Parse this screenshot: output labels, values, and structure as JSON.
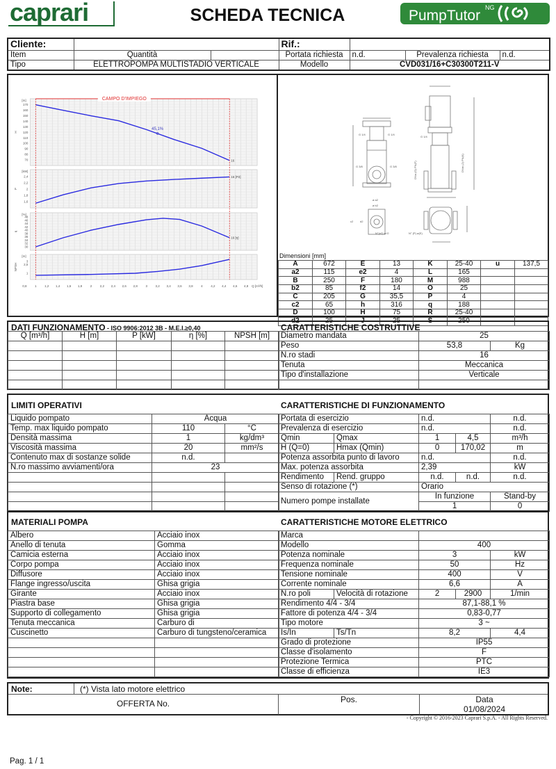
{
  "header": {
    "brand": "caprari",
    "title": "SCHEDA TECNICA",
    "product_logo": "PumpTutor",
    "product_logo_sup": "NG",
    "colors": {
      "brand_green": "#1e6b34",
      "logo_green": "#2f8a3a"
    }
  },
  "top": [
    [
      "Cliente:",
      "",
      "Rif.:",
      ""
    ],
    [
      "Item",
      "Quantità",
      "",
      "Portata richiesta",
      "n.d.",
      "Prevalenza richiesta",
      "n.d."
    ],
    [
      "Tipo",
      "ELETTROPOMPA MULTISTADIO VERTICALE",
      "Modello",
      "CVD031/16+C30300T211-V"
    ]
  ],
  "performance_chart": {
    "range_label": "CAMPO D'IMPIEGO",
    "x_unit": "Q [m³/h]",
    "x_ticks": [
      "0,8",
      "1",
      "1,2",
      "1,4",
      "1,6",
      "1,8",
      "2",
      "2,2",
      "2,4",
      "2,6",
      "2,8",
      "3",
      "3,2",
      "3,4",
      "3,6",
      "3,8",
      "4",
      "4,2",
      "4,4",
      "4,6",
      "4,8"
    ],
    "q_min": 1,
    "q_max": 4.5,
    "operating_point": {
      "q": 3.2,
      "label": "45,1%"
    },
    "panels": [
      {
        "axis": "H",
        "unit": "[m]",
        "ticks": [
          "70",
          "80",
          "90",
          "100",
          "110",
          "120",
          "130",
          "140",
          "150",
          "160",
          "170"
        ],
        "end_label": "16",
        "q": [
          1,
          1.5,
          2,
          2.5,
          3,
          3.5,
          4,
          4.5
        ],
        "values": [
          170,
          160,
          150,
          141,
          125,
          107,
          91,
          69
        ]
      },
      {
        "axis": "P",
        "unit": "[kW]",
        "ticks": [
          "1,6",
          "1,8",
          "2",
          "2,2",
          "2,4"
        ],
        "end_label": "16 [P2]",
        "q": [
          1,
          1.5,
          2,
          2.5,
          3,
          3.5,
          4,
          4.5
        ],
        "values": [
          1.55,
          1.82,
          2.04,
          2.18,
          2.26,
          2.31,
          2.35,
          2.39
        ]
      },
      {
        "axis": "η",
        "unit": "[%]",
        "ticks": [
          "30",
          "32",
          "34",
          "36",
          "38",
          "40",
          "42",
          "44",
          "46",
          "48"
        ],
        "end_label": "16 [η]",
        "q": [
          1,
          1.5,
          2,
          2.5,
          3,
          3.3,
          3.6,
          4,
          4.5
        ],
        "values": [
          30,
          35.5,
          40,
          43.5,
          46.3,
          47.2,
          46.5,
          42.5,
          35.5
        ]
      },
      {
        "axis": "NPSH",
        "unit": "[m]",
        "ticks": [
          "1",
          "2,5",
          "3"
        ],
        "end_label": "",
        "q": [
          1,
          2,
          2.8,
          3.2,
          3.6,
          4,
          4.5
        ],
        "values": [
          0.65,
          0.8,
          1.0,
          1.3,
          1.7,
          2.3,
          3.35
        ]
      }
    ]
  },
  "dimensions": {
    "title": "Dimensioni [mm]",
    "rows": [
      [
        "A",
        "672",
        "E",
        "13",
        "K",
        "25-40",
        "u",
        "137,5"
      ],
      [
        "a2",
        "115",
        "e2",
        "4",
        "L",
        "165",
        "",
        ""
      ],
      [
        "B",
        "250",
        "F",
        "180",
        "M",
        "988",
        "",
        ""
      ],
      [
        "b2",
        "85",
        "f2",
        "14",
        "O",
        "25",
        "",
        ""
      ],
      [
        "C",
        "205",
        "G",
        "35,5",
        "P",
        "4",
        "",
        ""
      ],
      [
        "c2",
        "65",
        "h",
        "316",
        "q",
        "188",
        "",
        ""
      ],
      [
        "D",
        "100",
        "H",
        "75",
        "R",
        "25-40",
        "",
        ""
      ],
      [
        "d2",
        "25",
        "J",
        "25",
        "S",
        "250",
        "",
        ""
      ]
    ],
    "drawing_labels": {
      "g14": "G 1/4",
      "g38": "G 3/8",
      "a2": "ø a2",
      "b2": "ø b2",
      "c2": "c2",
      "d2": "d2",
      "ne2": "N°(e2) ø f2",
      "npe": "N° (P) ø(E)",
      "dna": "DNa (O) PN(F)",
      "dnm": "DNm (J) PN(K)"
    }
  },
  "dati": {
    "title": "DATI FUNZIONAMENTO",
    "subtitle": " - ISO 9906:2012 3B - M.E.I.≥0,40",
    "rows": [
      [
        "Q [m³/h]",
        "H [m]",
        "P [kW]",
        "η [%]",
        "NPSH [m]"
      ],
      [
        "",
        "",
        "",
        "",
        ""
      ],
      [
        "",
        "",
        "",
        "",
        ""
      ],
      [
        "",
        "",
        "",
        "",
        ""
      ],
      [
        "",
        "",
        "",
        "",
        ""
      ],
      [
        "",
        "",
        "",
        "",
        ""
      ]
    ]
  },
  "costruttive": {
    "title": "CARATTERISTICHE COSTRUTTIVE",
    "rows": [
      [
        "Diametro mandata",
        "25"
      ],
      [
        "Peso",
        "53,8",
        "Kg"
      ],
      [
        "N.ro stadi",
        "16"
      ],
      [
        "Tenuta",
        "Meccanica"
      ],
      [
        "Tipo d'installazione",
        "Verticale"
      ],
      [
        "",
        ""
      ]
    ]
  },
  "limiti": {
    "title": "LIMITI OPERATIVI",
    "rows": [
      [
        "Liquido pompato",
        "Acqua"
      ],
      [
        "Temp. max liquido pompato",
        "110",
        "°C"
      ],
      [
        "Densità massima",
        "1",
        "kg/dm³"
      ],
      [
        "Viscosità massima",
        "20",
        "mm²/s"
      ],
      [
        "Contenuto max di sostanze solide",
        "n.d.",
        ""
      ],
      [
        "N.ro massimo avviamenti/ora",
        "23"
      ],
      [
        "",
        "",
        ""
      ],
      [
        "",
        "",
        ""
      ],
      [
        "",
        "",
        ""
      ],
      [
        "",
        "",
        ""
      ]
    ]
  },
  "funzionamento": {
    "title": "CARATTERISTICHE DI FUNZIONAMENTO",
    "rows": [
      [
        "Portata di esercizio",
        "n.d.",
        "n.d."
      ],
      [
        "Prevalenza di esercizio",
        "n.d.",
        "n.d."
      ],
      [
        "Qmin",
        "Qmax",
        "1",
        "4,5",
        "m³/h"
      ],
      [
        "H (Q=0)",
        "Hmax (Qmin)",
        "0",
        "170,02",
        "m"
      ],
      [
        "Potenza assorbita punto di lavoro",
        "n.d.",
        "n.d."
      ],
      [
        "Max. potenza assorbita",
        "2,39",
        "kW"
      ],
      [
        "Rendimento",
        "Rend. gruppo",
        "n.d.",
        "n.d.",
        "n.d."
      ],
      [
        "Senso di rotazione (*)",
        "Orario"
      ],
      [
        "Numero pompe installate",
        "In funzione",
        "Stand-by"
      ],
      [
        "1",
        "0"
      ]
    ]
  },
  "materiali": {
    "title": "MATERIALI POMPA",
    "rows": [
      [
        "Albero",
        "Acciaio inox"
      ],
      [
        "Anello di tenuta",
        "Gomma"
      ],
      [
        "Camicia esterna",
        "Acciaio inox"
      ],
      [
        "Corpo pompa",
        "Acciaio inox"
      ],
      [
        "Diffusore",
        "Acciaio inox"
      ],
      [
        "Flange ingresso/uscita",
        "Ghisa grigia"
      ],
      [
        "Girante",
        "Acciaio inox"
      ],
      [
        "Piastra base",
        "Ghisa grigia"
      ],
      [
        "Supporto di collegamento",
        "Ghisa grigia"
      ],
      [
        "Tenuta meccanica",
        "Carburo di"
      ],
      [
        "Cuscinetto",
        "Carburo di tungsteno/ceramica"
      ],
      [
        "",
        ""
      ],
      [
        "",
        ""
      ],
      [
        "",
        ""
      ],
      [
        "",
        ""
      ]
    ]
  },
  "motore": {
    "title": "CARATTERISTICHE MOTORE ELETTRICO",
    "rows": [
      [
        "Marca",
        ""
      ],
      [
        "Modello",
        "400"
      ],
      [
        "Potenza nominale",
        "3",
        "kW"
      ],
      [
        "Frequenza nominale",
        "50",
        "Hz"
      ],
      [
        "Tensione nominale",
        "400",
        "V"
      ],
      [
        "Corrente nominale",
        "6,6",
        "A"
      ],
      [
        "N.ro poli",
        "Velocità di rotazione",
        "2",
        "2900",
        "1/min"
      ],
      [
        "Rendimento 4/4 - 3/4",
        "87,1-88,1 %"
      ],
      [
        "Fattore di potenza 4/4 - 3/4",
        "0,83-0,77"
      ],
      [
        "Tipo motore",
        "3 ~"
      ],
      [
        "Is/In",
        "Ts/Tn",
        "8,2",
        "4,4"
      ],
      [
        "Grado di protezione",
        "IP55"
      ],
      [
        "Classe d'isolamento",
        "F"
      ],
      [
        "Protezione Termica",
        "PTC"
      ],
      [
        "Classe di efficienza",
        "IE3"
      ]
    ]
  },
  "note": {
    "label": "Note:",
    "text": "(*) Vista lato motore elettrico",
    "offerta": "OFFERTA No.",
    "pos": "Pos.",
    "data_label": "Data",
    "data_value": "01/08/2024"
  },
  "footer": {
    "copyright": "-   Copyright © 2016-2023 Caprari S.p.A. - All Rights Reserved.",
    "page": "Pag. 1 / 1"
  }
}
